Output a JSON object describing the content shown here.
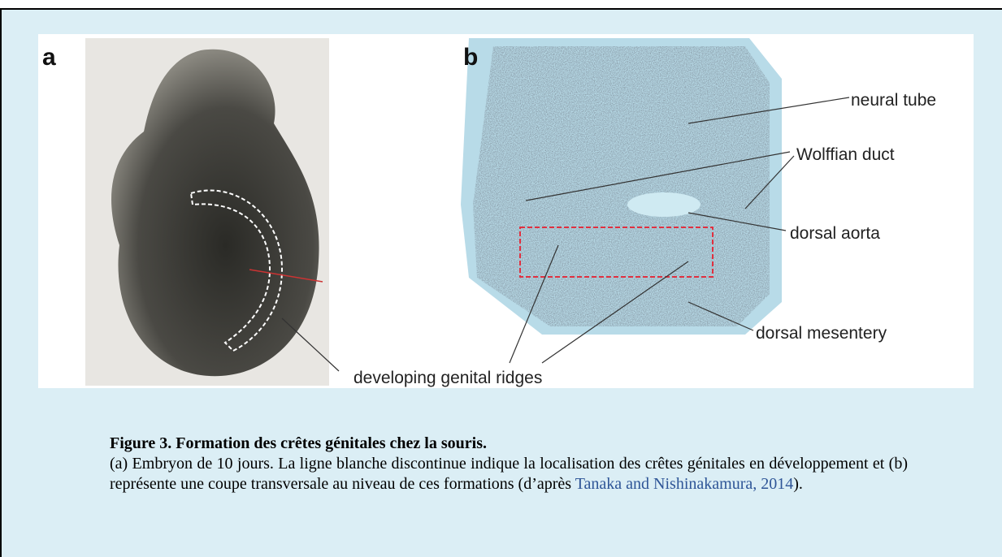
{
  "figure": {
    "panels": [
      "a",
      "b"
    ],
    "labels": [
      "neural tube",
      "Wolffian duct",
      "dorsal aorta",
      "dorsal mesentery",
      "developing genital ridges"
    ]
  },
  "caption": {
    "title": "Figure 3. Formation des crêtes génitales chez la souris.",
    "text_before": "(a) Embryon de 10 jours. La ligne blanche discontinue indique la localisation des crêtes génitales en développement et (b) représente une coupe transversale au niveau de ces formations (d’après ",
    "link": "Tanaka and Nishinakamura, 2014",
    "text_after": ")."
  }
}
